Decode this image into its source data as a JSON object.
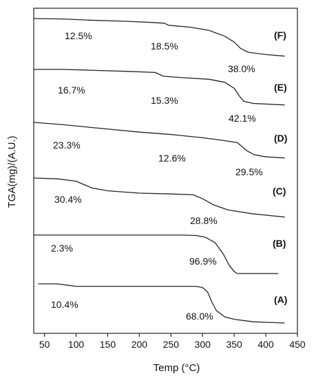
{
  "chart_data": {
    "type": "line",
    "title": "",
    "xlabel": "Temp (°C)",
    "ylabel": "TGA(mg)/(A.U.)",
    "xlim": [
      33,
      450
    ],
    "xticks": [
      50,
      100,
      150,
      200,
      250,
      300,
      350,
      400,
      450
    ],
    "grid": false,
    "legend": "none",
    "series": [
      {
        "name": "(F)",
        "points": [
          [
            33,
            0.0
          ],
          [
            80,
            0.01
          ],
          [
            120,
            0.04
          ],
          [
            180,
            0.07
          ],
          [
            220,
            0.1
          ],
          [
            240,
            0.12
          ],
          [
            246,
            0.17
          ],
          [
            280,
            0.22
          ],
          [
            310,
            0.3
          ],
          [
            335,
            0.45
          ],
          [
            350,
            0.6
          ],
          [
            360,
            0.76
          ],
          [
            372,
            0.86
          ],
          [
            400,
            0.92
          ],
          [
            430,
            0.96
          ]
        ],
        "annotations": [
          "12.5%",
          "18.5%",
          "38.0%"
        ]
      },
      {
        "name": "(E)",
        "points": [
          [
            33,
            0.0
          ],
          [
            80,
            0.0
          ],
          [
            120,
            0.02
          ],
          [
            180,
            0.05
          ],
          [
            225,
            0.08
          ],
          [
            238,
            0.18
          ],
          [
            270,
            0.22
          ],
          [
            310,
            0.26
          ],
          [
            335,
            0.34
          ],
          [
            350,
            0.5
          ],
          [
            358,
            0.7
          ],
          [
            365,
            0.84
          ],
          [
            380,
            0.9
          ],
          [
            430,
            0.94
          ]
        ],
        "annotations": [
          "16.7%",
          "15.3%",
          "42.1%"
        ]
      },
      {
        "name": "(D)",
        "points": [
          [
            33,
            0.0
          ],
          [
            80,
            0.06
          ],
          [
            120,
            0.12
          ],
          [
            160,
            0.18
          ],
          [
            200,
            0.24
          ],
          [
            250,
            0.3
          ],
          [
            300,
            0.38
          ],
          [
            330,
            0.44
          ],
          [
            355,
            0.5
          ],
          [
            370,
            0.7
          ],
          [
            382,
            0.8
          ],
          [
            400,
            0.85
          ],
          [
            430,
            0.88
          ]
        ],
        "annotations": [
          "23.3%",
          "12.6%",
          "29.5%"
        ]
      },
      {
        "name": "(C)",
        "points": [
          [
            33,
            0.0
          ],
          [
            70,
            0.02
          ],
          [
            100,
            0.08
          ],
          [
            125,
            0.25
          ],
          [
            150,
            0.32
          ],
          [
            200,
            0.38
          ],
          [
            250,
            0.4
          ],
          [
            285,
            0.42
          ],
          [
            300,
            0.52
          ],
          [
            318,
            0.68
          ],
          [
            340,
            0.8
          ],
          [
            380,
            0.9
          ],
          [
            430,
            0.98
          ]
        ],
        "annotations": [
          "30.4%",
          "28.8%"
        ]
      },
      {
        "name": "(B)",
        "points": [
          [
            33,
            0.0
          ],
          [
            100,
            0.0
          ],
          [
            200,
            0.0
          ],
          [
            270,
            0.0
          ],
          [
            290,
            0.01
          ],
          [
            305,
            0.06
          ],
          [
            320,
            0.2
          ],
          [
            333,
            0.5
          ],
          [
            342,
            0.78
          ],
          [
            350,
            0.95
          ],
          [
            355,
            1.0
          ],
          [
            420,
            1.0
          ]
        ],
        "annotations": [
          "2.3%",
          "96.9%"
        ]
      },
      {
        "name": "(A)",
        "points": [
          [
            40,
            0.0
          ],
          [
            70,
            0.0
          ],
          [
            85,
            0.03
          ],
          [
            100,
            0.06
          ],
          [
            150,
            0.06
          ],
          [
            250,
            0.06
          ],
          [
            290,
            0.06
          ],
          [
            300,
            0.09
          ],
          [
            308,
            0.2
          ],
          [
            315,
            0.45
          ],
          [
            322,
            0.65
          ],
          [
            335,
            0.8
          ],
          [
            350,
            0.86
          ],
          [
            380,
            0.92
          ],
          [
            430,
            0.95
          ]
        ],
        "annotations": [
          "10.4%",
          "68.0%"
        ]
      }
    ]
  }
}
